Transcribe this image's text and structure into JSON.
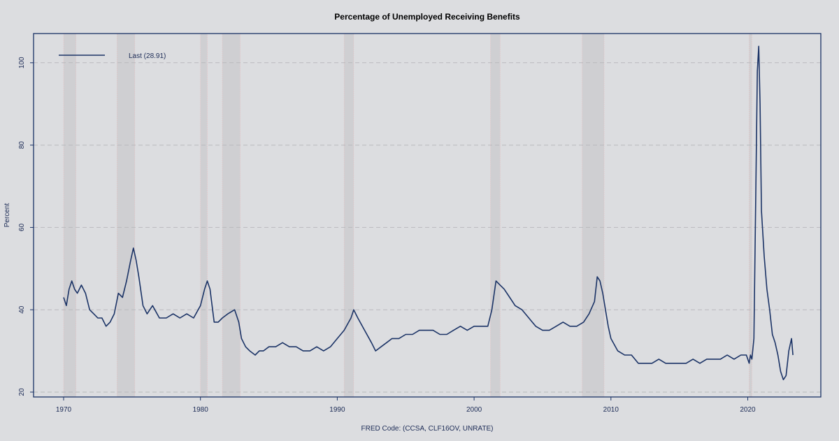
{
  "chart_data": {
    "type": "line",
    "title": "Percentage of Unemployed Receiving Benefits",
    "xlabel": "FRED Code: (CCSA, CLF16OV, UNRATE)",
    "ylabel": "Percent",
    "xlim": [
      1970,
      2025
    ],
    "ylim": [
      20,
      100
    ],
    "x_ticks": [
      1970,
      1980,
      1990,
      2000,
      2010,
      2020
    ],
    "y_ticks": [
      20,
      40,
      60,
      80,
      100
    ],
    "y_tick_labels": [
      "20",
      "40",
      "60",
      "80",
      "100"
    ],
    "grid": "horizontal-dashed",
    "legend": {
      "position": "top-left",
      "label": "Last (28.91)"
    },
    "colors": {
      "line": "#1b3366",
      "frame": "#1b3366",
      "recession": "#f2b3b3",
      "grid": "#b9babd",
      "background": "#dcdde0"
    },
    "recessions": [
      [
        1970.0,
        1970.9
      ],
      [
        1973.9,
        1975.2
      ],
      [
        1980.0,
        1980.5
      ],
      [
        1981.6,
        1982.9
      ],
      [
        1990.5,
        1991.2
      ],
      [
        2001.2,
        2001.9
      ],
      [
        2007.9,
        2009.5
      ],
      [
        2020.1,
        2020.3
      ]
    ],
    "series": [
      {
        "name": "",
        "x": [
          1970.0,
          1970.2,
          1970.4,
          1970.6,
          1970.8,
          1971.0,
          1971.3,
          1971.6,
          1971.9,
          1972.2,
          1972.5,
          1972.8,
          1973.1,
          1973.4,
          1973.7,
          1974.0,
          1974.3,
          1974.6,
          1974.9,
          1975.1,
          1975.3,
          1975.5,
          1975.8,
          1976.1,
          1976.5,
          1977.0,
          1977.5,
          1978.0,
          1978.5,
          1979.0,
          1979.5,
          1980.0,
          1980.3,
          1980.5,
          1980.7,
          1981.0,
          1981.3,
          1981.6,
          1982.0,
          1982.5,
          1982.8,
          1983.0,
          1983.3,
          1983.6,
          1984.0,
          1984.3,
          1984.6,
          1985.0,
          1985.5,
          1986.0,
          1986.5,
          1987.0,
          1987.5,
          1988.0,
          1988.5,
          1989.0,
          1989.5,
          1990.0,
          1990.5,
          1991.0,
          1991.2,
          1991.5,
          1992.0,
          1992.5,
          1992.8,
          1993.2,
          1993.6,
          1994.0,
          1994.5,
          1995.0,
          1995.5,
          1996.0,
          1996.5,
          1997.0,
          1997.5,
          1998.0,
          1998.5,
          1999.0,
          1999.5,
          2000.0,
          2000.5,
          2001.0,
          2001.3,
          2001.6,
          2001.9,
          2002.2,
          2002.6,
          2003.0,
          2003.5,
          2004.0,
          2004.5,
          2005.0,
          2005.5,
          2006.0,
          2006.5,
          2007.0,
          2007.5,
          2008.0,
          2008.4,
          2008.8,
          2009.0,
          2009.2,
          2009.4,
          2009.6,
          2009.8,
          2010.0,
          2010.5,
          2011.0,
          2011.5,
          2012.0,
          2012.5,
          2013.0,
          2013.5,
          2014.0,
          2014.5,
          2015.0,
          2015.5,
          2016.0,
          2016.5,
          2017.0,
          2017.5,
          2018.0,
          2018.5,
          2019.0,
          2019.5,
          2019.9,
          2020.1,
          2020.2,
          2020.3,
          2020.45,
          2020.6,
          2020.7,
          2020.8,
          2020.9,
          2021.0,
          2021.2,
          2021.4,
          2021.6,
          2021.8,
          2022.0,
          2022.2,
          2022.4,
          2022.6,
          2022.8,
          2023.0,
          2023.2,
          2023.3
        ],
        "values": [
          43,
          41,
          45,
          47,
          45,
          44,
          46,
          44,
          40,
          39,
          38,
          38,
          36,
          37,
          39,
          44,
          43,
          47,
          52,
          55,
          52,
          48,
          41,
          39,
          41,
          38,
          38,
          39,
          38,
          39,
          38,
          41,
          45,
          47,
          45,
          37,
          37,
          38,
          39,
          40,
          37,
          33,
          31,
          30,
          29,
          30,
          30,
          31,
          31,
          32,
          31,
          31,
          30,
          30,
          31,
          30,
          31,
          33,
          35,
          38,
          40,
          38,
          35,
          32,
          30,
          31,
          32,
          33,
          33,
          34,
          34,
          35,
          35,
          35,
          34,
          34,
          35,
          36,
          35,
          36,
          36,
          36,
          40,
          47,
          46,
          45,
          43,
          41,
          40,
          38,
          36,
          35,
          35,
          36,
          37,
          36,
          36,
          37,
          39,
          42,
          48,
          47,
          44,
          40,
          36,
          33,
          30,
          29,
          29,
          27,
          27,
          27,
          28,
          27,
          27,
          27,
          27,
          28,
          27,
          28,
          28,
          28,
          29,
          28,
          29,
          29,
          27,
          29,
          28,
          33,
          71,
          98,
          104,
          90,
          64,
          53,
          45,
          40,
          34,
          32,
          29,
          25,
          23,
          24,
          30,
          33,
          29
        ]
      }
    ]
  }
}
